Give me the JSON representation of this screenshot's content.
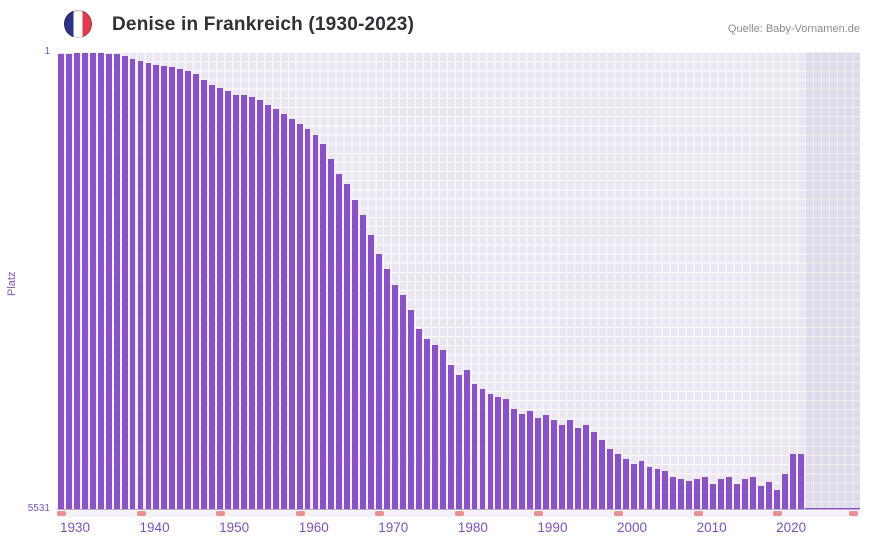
{
  "header": {
    "title": "Denise in Frankreich (1930-2023)",
    "source": "Quelle: Baby-Vornamen.de"
  },
  "axes": {
    "y_axis_title": "Platz",
    "y_top_label": "1",
    "y_bottom_label": "5531",
    "x_tick_labels": [
      "1930",
      "1940",
      "1950",
      "1960",
      "1970",
      "1980",
      "1990",
      "2000",
      "2010",
      "2020"
    ]
  },
  "colors": {
    "bar": "#8a52c5",
    "plot_background": "#ebe7f2",
    "axis_text": "#7d54bb",
    "tick_marker": "#e99090",
    "title_text": "#2f2f38",
    "source_text": "#8b8b98",
    "flag_blue": "#2a3580",
    "flag_white": "#ffffff",
    "flag_red": "#e23b4e"
  },
  "chart_data": {
    "type": "bar",
    "title": "Denise in Frankreich (1930-2023)",
    "xlabel": "",
    "ylabel": "Platz",
    "y_inverted": true,
    "ylim": [
      1,
      5531
    ],
    "grid": true,
    "legend": false,
    "x": [
      1930,
      1931,
      1932,
      1933,
      1934,
      1935,
      1936,
      1937,
      1938,
      1939,
      1940,
      1941,
      1942,
      1943,
      1944,
      1945,
      1946,
      1947,
      1948,
      1949,
      1950,
      1951,
      1952,
      1953,
      1954,
      1955,
      1956,
      1957,
      1958,
      1959,
      1960,
      1961,
      1962,
      1963,
      1964,
      1965,
      1966,
      1967,
      1968,
      1969,
      1970,
      1971,
      1972,
      1973,
      1974,
      1975,
      1976,
      1977,
      1978,
      1979,
      1980,
      1981,
      1982,
      1983,
      1984,
      1985,
      1986,
      1987,
      1988,
      1989,
      1990,
      1991,
      1992,
      1993,
      1994,
      1995,
      1996,
      1997,
      1998,
      1999,
      2000,
      2001,
      2002,
      2003,
      2004,
      2005,
      2006,
      2007,
      2008,
      2009,
      2010,
      2011,
      2012,
      2013,
      2014,
      2015,
      2016,
      2017,
      2018,
      2019,
      2020,
      2021,
      2022,
      2023
    ],
    "values": [
      28,
      20,
      16,
      12,
      10,
      18,
      24,
      30,
      45,
      85,
      105,
      135,
      155,
      165,
      185,
      210,
      235,
      265,
      335,
      395,
      430,
      475,
      515,
      520,
      550,
      580,
      635,
      695,
      755,
      815,
      875,
      935,
      1000,
      1115,
      1295,
      1475,
      1595,
      1785,
      1965,
      2205,
      2445,
      2625,
      2810,
      2930,
      3110,
      3350,
      3470,
      3535,
      3595,
      3775,
      3895,
      3835,
      4015,
      4075,
      4135,
      4170,
      4195,
      4315,
      4375,
      4340,
      4415,
      4380,
      4440,
      4500,
      4440,
      4535,
      4500,
      4585,
      4680,
      4800,
      4860,
      4920,
      4980,
      4945,
      5015,
      5040,
      5065,
      5135,
      5160,
      5185,
      5160,
      5135,
      5220,
      5160,
      5135,
      5220,
      5160,
      5135,
      5245,
      5195,
      5285,
      5090,
      4860,
      4860
    ]
  }
}
